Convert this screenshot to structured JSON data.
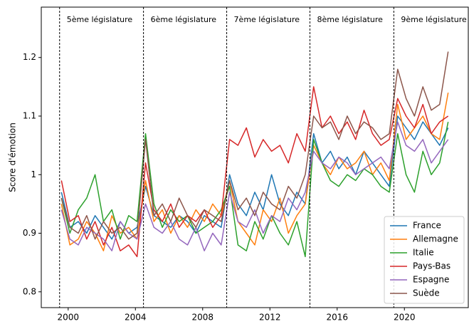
{
  "chart_data": {
    "type": "line",
    "ylabel": "Score d'émotion",
    "xlim": [
      1998.4,
      2023.8
    ],
    "xticks": [
      2000,
      2004,
      2008,
      2012,
      2016,
      2020
    ],
    "ylim": [
      0.773,
      1.286
    ],
    "yticks": [
      0.8,
      0.9,
      1.0,
      1.1,
      1.2
    ],
    "legend": "lower right",
    "legislatures": [
      {
        "start": 1999.49,
        "label": "5ème législature"
      },
      {
        "start": 2004.48,
        "label": "6ème législature"
      },
      {
        "start": 2009.43,
        "label": "7ème législature"
      },
      {
        "start": 2014.38,
        "label": "8ème législature"
      },
      {
        "start": 2019.37,
        "label": "9ème législature"
      }
    ],
    "x": [
      1999.6,
      2000.1,
      2000.6,
      2001.1,
      2001.6,
      2002.1,
      2002.6,
      2003.1,
      2003.6,
      2004.1,
      2004.6,
      2005.1,
      2005.6,
      2006.1,
      2006.6,
      2007.1,
      2007.6,
      2008.1,
      2008.6,
      2009.1,
      2009.6,
      2010.1,
      2010.6,
      2011.1,
      2011.6,
      2012.1,
      2012.6,
      2013.1,
      2013.6,
      2014.1,
      2014.6,
      2015.1,
      2015.6,
      2016.1,
      2016.6,
      2017.1,
      2017.6,
      2018.1,
      2018.6,
      2019.1,
      2019.6,
      2020.1,
      2020.6,
      2021.1,
      2021.6,
      2022.1,
      2022.6
    ],
    "series": [
      {
        "name": "France",
        "color": "#1f77b4",
        "values": [
          0.97,
          0.91,
          0.92,
          0.9,
          0.93,
          0.91,
          0.89,
          0.92,
          0.9,
          0.91,
          0.98,
          0.93,
          0.92,
          0.91,
          0.93,
          0.92,
          0.9,
          0.93,
          0.92,
          0.91,
          1.0,
          0.95,
          0.93,
          0.97,
          0.94,
          1.0,
          0.95,
          0.93,
          0.97,
          0.95,
          1.07,
          1.02,
          1.04,
          1.01,
          1.03,
          1.0,
          1.04,
          1.02,
          1.0,
          0.98,
          1.1,
          1.08,
          1.06,
          1.09,
          1.07,
          1.05,
          1.08
        ]
      },
      {
        "name": "Allemagne",
        "color": "#ff7f0e",
        "values": [
          0.95,
          0.88,
          0.89,
          0.92,
          0.9,
          0.87,
          0.93,
          0.9,
          0.91,
          0.89,
          0.99,
          0.92,
          0.94,
          0.9,
          0.93,
          0.91,
          0.94,
          0.92,
          0.95,
          0.93,
          0.99,
          0.92,
          0.9,
          0.88,
          0.94,
          0.92,
          0.96,
          0.9,
          0.93,
          0.95,
          1.05,
          1.02,
          1.0,
          1.03,
          1.01,
          1.02,
          1.04,
          1.0,
          1.02,
          0.99,
          1.12,
          1.06,
          1.08,
          1.1,
          1.07,
          1.06,
          1.14
        ]
      },
      {
        "name": "Italie",
        "color": "#2ca02c",
        "values": [
          0.96,
          0.9,
          0.94,
          0.96,
          1.0,
          0.92,
          0.94,
          0.89,
          0.93,
          0.92,
          1.07,
          0.95,
          0.91,
          0.94,
          0.92,
          0.93,
          0.9,
          0.91,
          0.92,
          0.94,
          0.98,
          0.88,
          0.87,
          0.92,
          0.89,
          0.93,
          0.9,
          0.88,
          0.92,
          0.86,
          1.06,
          1.02,
          0.99,
          0.98,
          1.0,
          0.99,
          1.01,
          1.0,
          0.98,
          0.97,
          1.07,
          1.0,
          0.97,
          1.04,
          1.0,
          1.02,
          1.09
        ]
      },
      {
        "name": "Pays-Bas",
        "color": "#d62728",
        "values": [
          0.99,
          0.92,
          0.93,
          0.89,
          0.92,
          0.88,
          0.91,
          0.87,
          0.88,
          0.86,
          1.02,
          0.94,
          0.92,
          0.95,
          0.91,
          0.93,
          0.92,
          0.94,
          0.91,
          0.93,
          1.06,
          1.05,
          1.08,
          1.03,
          1.06,
          1.04,
          1.05,
          1.02,
          1.07,
          1.04,
          1.15,
          1.08,
          1.1,
          1.07,
          1.09,
          1.06,
          1.11,
          1.07,
          1.05,
          1.06,
          1.13,
          1.1,
          1.08,
          1.12,
          1.07,
          1.09,
          1.1
        ]
      },
      {
        "name": "Espagne",
        "color": "#9467bd",
        "values": [
          0.94,
          0.89,
          0.88,
          0.91,
          0.9,
          0.89,
          0.87,
          0.92,
          0.9,
          0.89,
          0.95,
          0.91,
          0.9,
          0.92,
          0.89,
          0.88,
          0.91,
          0.87,
          0.9,
          0.88,
          0.97,
          0.92,
          0.91,
          0.94,
          0.9,
          0.93,
          0.92,
          0.96,
          0.94,
          0.97,
          1.04,
          1.02,
          1.01,
          1.03,
          1.02,
          1.0,
          1.01,
          1.02,
          1.03,
          1.01,
          1.09,
          1.05,
          1.04,
          1.06,
          1.02,
          1.04,
          1.06
        ]
      },
      {
        "name": "Suède",
        "color": "#8c564b",
        "values": [
          0.96,
          0.91,
          0.9,
          0.93,
          0.89,
          0.92,
          0.9,
          0.91,
          0.89,
          0.9,
          1.06,
          0.93,
          0.95,
          0.92,
          0.96,
          0.93,
          0.91,
          0.94,
          0.93,
          0.92,
          0.99,
          0.94,
          0.96,
          0.93,
          0.97,
          0.95,
          0.94,
          0.98,
          0.96,
          1.0,
          1.1,
          1.08,
          1.09,
          1.06,
          1.1,
          1.07,
          1.09,
          1.08,
          1.06,
          1.07,
          1.18,
          1.13,
          1.1,
          1.15,
          1.11,
          1.12,
          1.21
        ]
      }
    ]
  }
}
